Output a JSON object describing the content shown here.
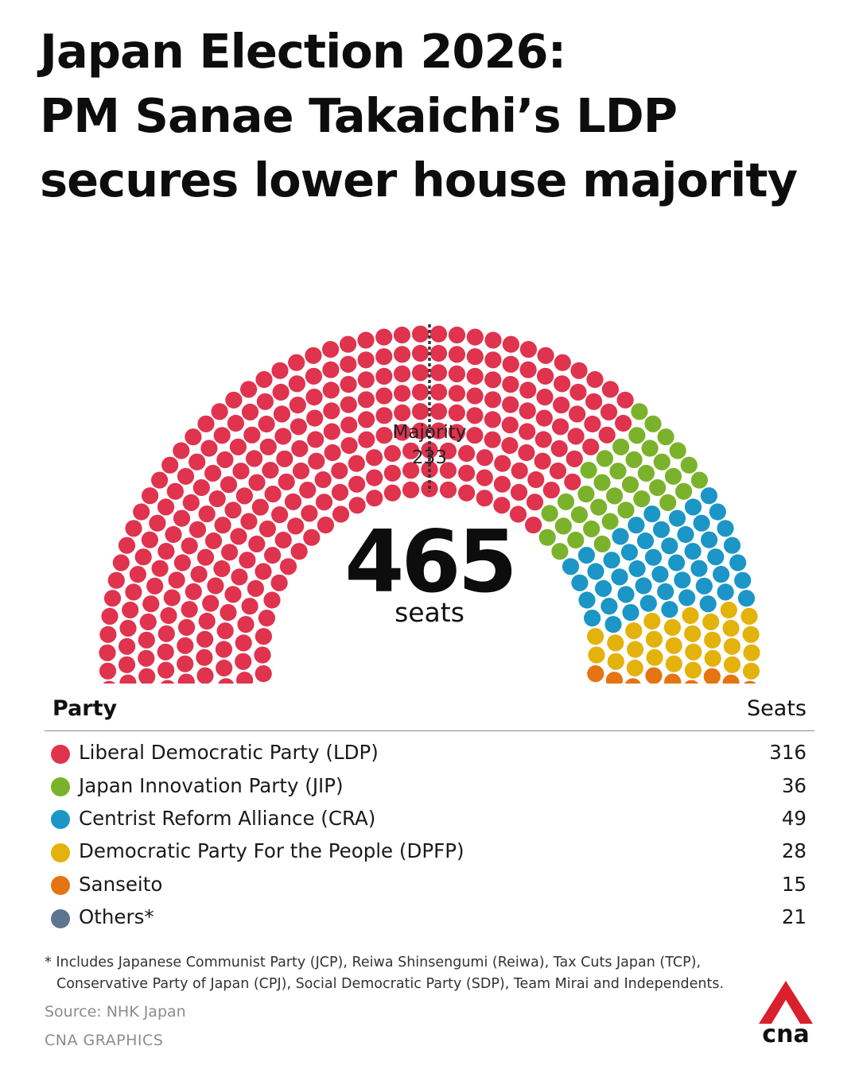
{
  "headline": {
    "line1": "Japan Election 2026:",
    "line2": "PM Sanae Takaichi’s LDP",
    "line3": "secures lower house majority"
  },
  "chart_data": {
    "type": "parliament",
    "title": "Japan Election 2026: PM Sanae Takaichi’s LDP secures lower house majority",
    "total_seats": 465,
    "total_label": "465",
    "total_unit": "seats",
    "majority_label": "Majority",
    "majority": 233,
    "series": [
      {
        "name": "Liberal Democratic Party (LDP)",
        "value": 316,
        "color": "#e0334e"
      },
      {
        "name": "Japan Innovation Party (JIP)",
        "value": 36,
        "color": "#7bb22b"
      },
      {
        "name": "Centrist Reform Alliance (CRA)",
        "value": 49,
        "color": "#1b96c6"
      },
      {
        "name": "Democratic Party For the People (DPFP)",
        "value": 28,
        "color": "#e3b20c"
      },
      {
        "name": "Sanseito",
        "value": 15,
        "color": "#e57412"
      },
      {
        "name": "Others*",
        "value": 21,
        "color": "#5e7590"
      }
    ]
  },
  "table": {
    "party_header": "Party",
    "seats_header": "Seats"
  },
  "footnote": {
    "line1": "* Includes Japanese Communist Party (JCP), Reiwa Shinsengumi (Reiwa), Tax Cuts Japan (TCP),",
    "line2": "Conservative Party of Japan (CPJ), Social Democratic Party (SDP), Team Mirai and Independents."
  },
  "source": "Source: NHK Japan",
  "credit": "CNA GRAPHICS",
  "logo": {
    "text": "cna",
    "color": "#d9202c",
    "text_color": "#111111"
  }
}
